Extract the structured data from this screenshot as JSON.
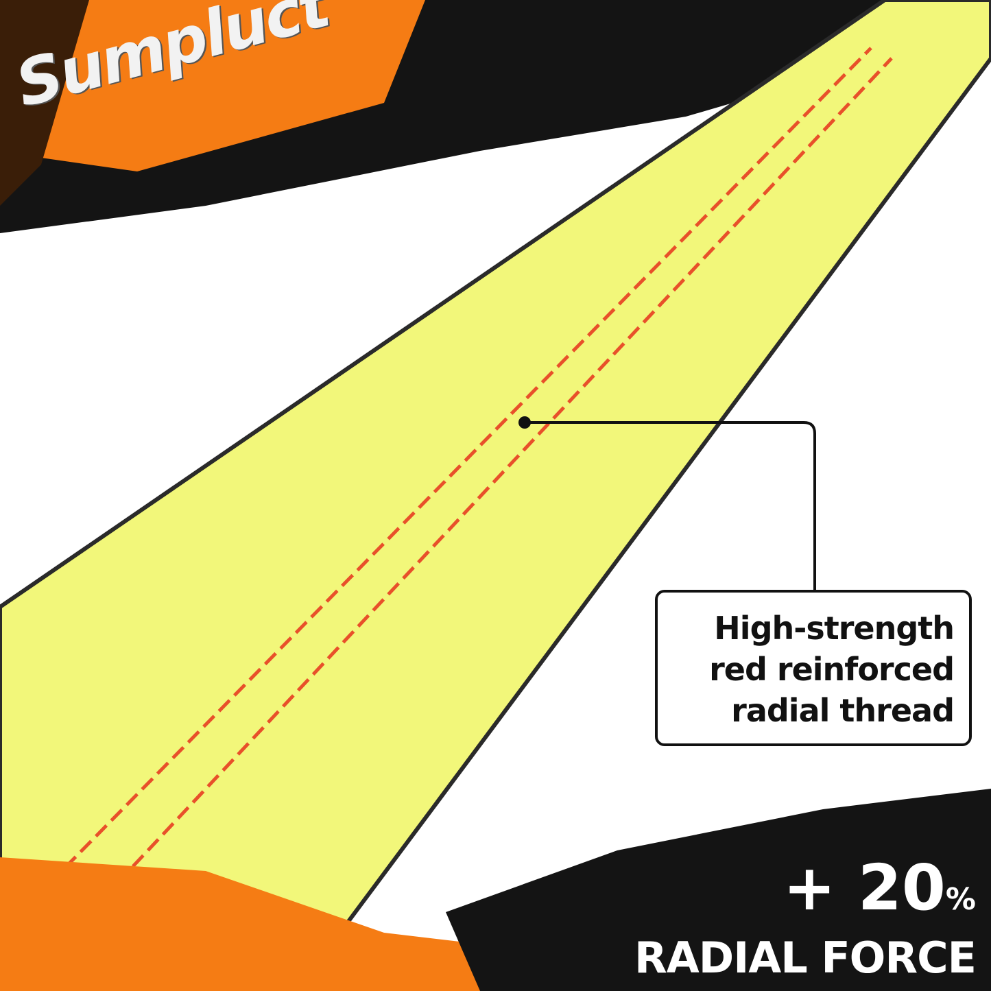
{
  "brand": {
    "logo_text": "Sumpluct"
  },
  "callout": {
    "lines": [
      "High-strength",
      "red reinforced",
      "radial thread"
    ]
  },
  "promo": {
    "value": "+ 20",
    "unit": "%",
    "label": "RADIAL FORCE"
  },
  "colors": {
    "strap": "#f2f77a",
    "thread": "#e8502a",
    "orange": "#f57c14",
    "black": "#111111"
  }
}
